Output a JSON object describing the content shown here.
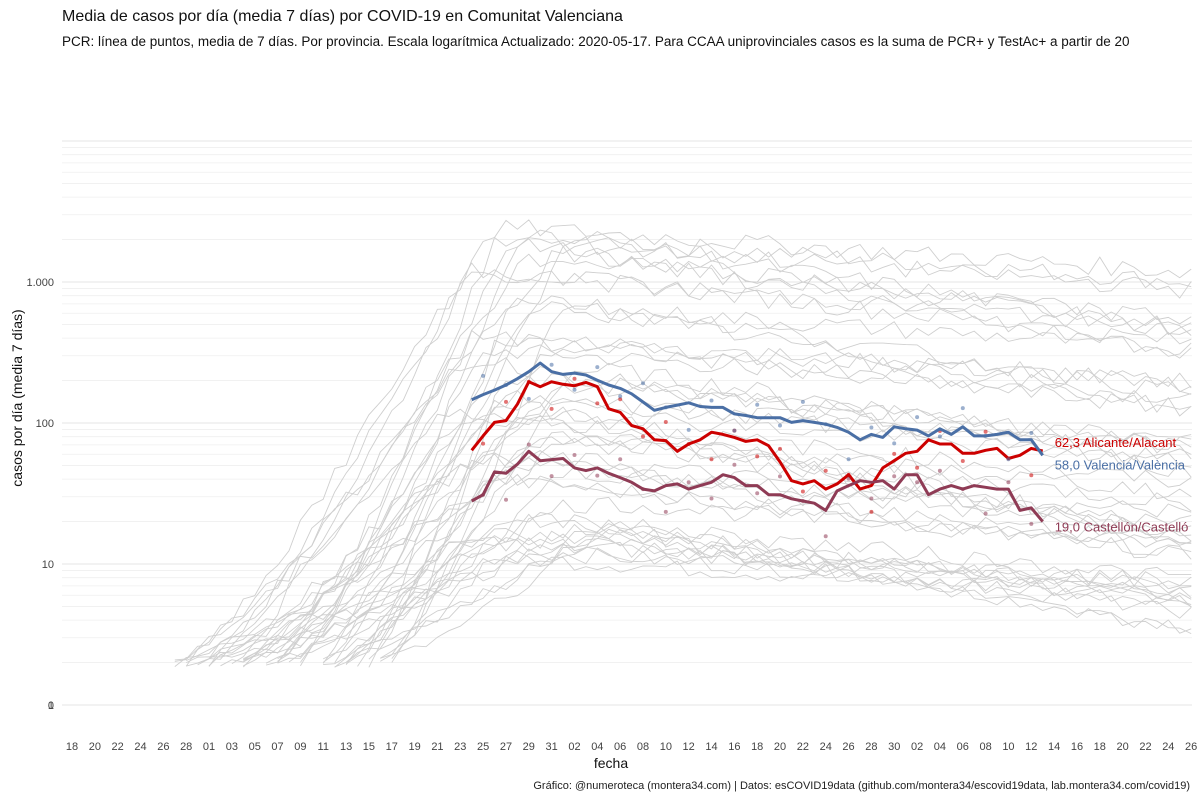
{
  "chart_data": {
    "type": "line",
    "title": "Media de casos por día (media 7 días) por COVID-19 en Comunitat Valenciana",
    "subtitle": "PCR: línea de puntos, media de 7 días. Por provincia. Escala logarítmica  Actualizado: 2020-05-17. Para CCAA uniprovinciales casos es la suma de PCR+ y TestAc+ a partir de 20",
    "xlabel": "fecha",
    "ylabel": "casos por día (media 7 días)",
    "caption": "Gráfico: @numeroteca (montera34.com) | Datos: esCOVID19data (github.com/montera34/escovid19data, lab.montera34.com/covid19)",
    "y_scale": "log",
    "y_ticks": [
      {
        "value": 0,
        "label": "0"
      },
      {
        "value": 1,
        "label": "1"
      },
      {
        "value": 10,
        "label": "10"
      },
      {
        "value": 100,
        "label": "100"
      },
      {
        "value": 1000,
        "label": "1.000"
      }
    ],
    "x_range": [
      "2020-02-18",
      "2020-06-26"
    ],
    "x_ticks": [
      "18",
      "20",
      "22",
      "24",
      "26",
      "28",
      "01",
      "03",
      "05",
      "07",
      "09",
      "11",
      "13",
      "15",
      "17",
      "19",
      "21",
      "23",
      "25",
      "27",
      "29",
      "31",
      "02",
      "04",
      "06",
      "08",
      "10",
      "12",
      "14",
      "16",
      "18",
      "20",
      "22",
      "24",
      "26",
      "28",
      "30",
      "02",
      "04",
      "06",
      "08",
      "10",
      "12",
      "14",
      "16",
      "18",
      "20",
      "22",
      "24",
      "26"
    ],
    "x": [
      "2020-03-24",
      "2020-03-25",
      "2020-03-26",
      "2020-03-27",
      "2020-03-28",
      "2020-03-29",
      "2020-03-30",
      "2020-03-31",
      "2020-04-01",
      "2020-04-02",
      "2020-04-03",
      "2020-04-04",
      "2020-04-05",
      "2020-04-06",
      "2020-04-07",
      "2020-04-08",
      "2020-04-09",
      "2020-04-10",
      "2020-04-11",
      "2020-04-12",
      "2020-04-13",
      "2020-04-14",
      "2020-04-15",
      "2020-04-16",
      "2020-04-17",
      "2020-04-18",
      "2020-04-19",
      "2020-04-20",
      "2020-04-21",
      "2020-04-22",
      "2020-04-23",
      "2020-04-24",
      "2020-04-25",
      "2020-04-26",
      "2020-04-27",
      "2020-04-28",
      "2020-04-29",
      "2020-04-30",
      "2020-05-01",
      "2020-05-02",
      "2020-05-03",
      "2020-05-04",
      "2020-05-05",
      "2020-05-06",
      "2020-05-07",
      "2020-05-08",
      "2020-05-09",
      "2020-05-10",
      "2020-05-11",
      "2020-05-12",
      "2020-05-13"
    ],
    "series": [
      {
        "name": "Alicante/Alacant",
        "label": "62,3 Alicante/Alacant",
        "color": "#cc0000",
        "values": [
          63,
          80,
          100,
          103,
          135,
          195,
          180,
          195,
          187,
          183,
          193,
          180,
          125,
          118,
          95,
          90,
          75,
          74,
          62,
          70,
          75,
          85,
          82,
          78,
          73,
          75,
          68,
          52,
          38,
          36,
          38,
          33,
          36,
          42,
          33,
          35,
          47,
          53,
          60,
          62,
          75,
          70,
          70,
          60,
          60,
          63,
          65,
          55,
          58,
          65,
          62.3
        ]
      },
      {
        "name": "Valencia/València",
        "label": "58,0 Valencia/València",
        "color": "#4a6fa5",
        "values": [
          145,
          158,
          170,
          185,
          205,
          230,
          265,
          230,
          220,
          225,
          218,
          200,
          185,
          175,
          160,
          140,
          122,
          128,
          133,
          138,
          130,
          128,
          128,
          115,
          112,
          108,
          108,
          108,
          100,
          103,
          100,
          97,
          92,
          85,
          75,
          82,
          78,
          93,
          90,
          88,
          80,
          90,
          82,
          93,
          80,
          80,
          82,
          85,
          75,
          75,
          58.0
        ]
      },
      {
        "name": "Castellón/Castelló",
        "label": "19,0 Castellón/Castelló",
        "color": "#8f3b55",
        "values": [
          27,
          30,
          44,
          43,
          50,
          62,
          53,
          54,
          55,
          47,
          45,
          47,
          43,
          40,
          37,
          33,
          32,
          35,
          36,
          33,
          35,
          37,
          42,
          40,
          35,
          35,
          30,
          30,
          28,
          27,
          26,
          23,
          32,
          35,
          38,
          37,
          38,
          33,
          42,
          42,
          30,
          33,
          35,
          33,
          35,
          34,
          33,
          33,
          23,
          24,
          19.0
        ]
      }
    ],
    "legend": "labels at line ends (right)",
    "grid": true,
    "background_lines": "grey lines for other provinces"
  }
}
